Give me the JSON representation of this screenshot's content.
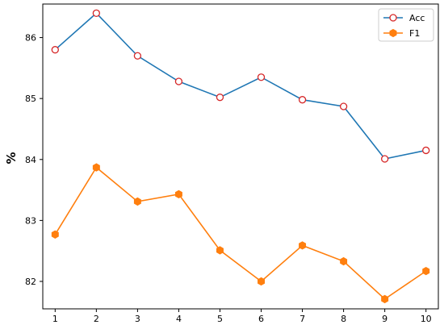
{
  "chart_data": {
    "type": "line",
    "title": "",
    "xlabel": "",
    "ylabel": "%",
    "x": [
      1,
      2,
      3,
      4,
      5,
      6,
      7,
      8,
      9,
      10
    ],
    "xticks": [
      "1",
      "2",
      "3",
      "4",
      "5",
      "6",
      "7",
      "8",
      "9",
      "10"
    ],
    "yticks": [
      "82",
      "83",
      "84",
      "85",
      "86"
    ],
    "ylim": [
      81.55,
      86.55
    ],
    "xlim": [
      0.7,
      10.3
    ],
    "grid": false,
    "legend_position": "top-right",
    "series": [
      {
        "name": "Acc",
        "color": "#1f77b4",
        "marker": "circle-open",
        "marker_edge_color": "#d62728",
        "values": [
          85.8,
          86.4,
          85.7,
          85.28,
          85.02,
          85.35,
          84.98,
          84.87,
          84.01,
          84.15
        ]
      },
      {
        "name": "F1",
        "color": "#ff7f0e",
        "marker": "hexagon-filled",
        "values": [
          82.77,
          83.87,
          83.31,
          83.43,
          82.51,
          82.0,
          82.59,
          82.33,
          81.71,
          82.17
        ]
      }
    ]
  }
}
